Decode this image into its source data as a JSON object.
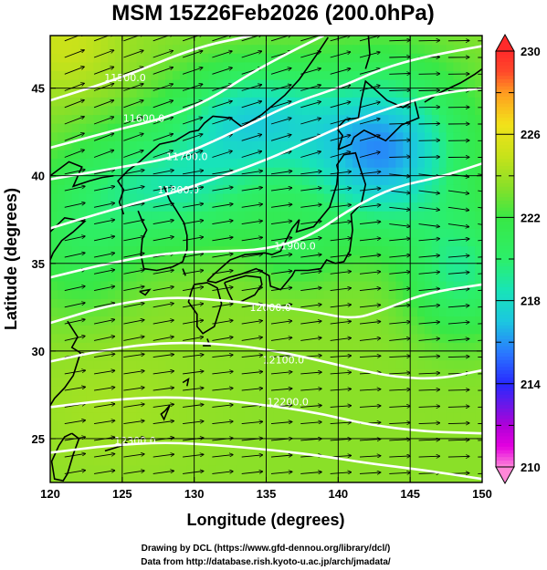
{
  "figure": {
    "title": "MSM 15Z26Feb2026 (200.0hPa)",
    "xlabel": "Longitude (degrees)",
    "ylabel": "Latitude  (degrees)",
    "footer_line1": "Drawing by DCL (https://www.gfd-dennou.org/library/dcl/)",
    "footer_line2": "Data from http://database.rish.kyoto-u.ac.jp/arch/jmadata/"
  },
  "map_data": {
    "type": "contour-shaded-vector-map",
    "variable_shading": "temperature",
    "xlim": [
      120,
      150
    ],
    "ylim": [
      22.5,
      48
    ],
    "x_ticks": [
      120,
      125,
      130,
      135,
      140,
      145,
      150
    ],
    "y_ticks": [
      25,
      30,
      35,
      40,
      45
    ],
    "colorbar": {
      "min": 210,
      "max": 230,
      "tick_values": [
        210,
        214,
        218,
        222,
        226,
        230
      ],
      "tick_labels": [
        "210",
        "214",
        "218",
        "222",
        "226",
        "230"
      ],
      "stops": [
        {
          "v": 210,
          "c": "#ff88d8"
        },
        {
          "v": 211,
          "c": "#e400e0"
        },
        {
          "v": 212,
          "c": "#b000d8"
        },
        {
          "v": 213,
          "c": "#6a18e8"
        },
        {
          "v": 214,
          "c": "#2828ff"
        },
        {
          "v": 215.5,
          "c": "#2a78ff"
        },
        {
          "v": 217,
          "c": "#1cc6e0"
        },
        {
          "v": 218.5,
          "c": "#18e4b8"
        },
        {
          "v": 220,
          "c": "#2cef6a"
        },
        {
          "v": 222,
          "c": "#38e846"
        },
        {
          "v": 223.5,
          "c": "#8ae028"
        },
        {
          "v": 225,
          "c": "#c8e21a"
        },
        {
          "v": 226.5,
          "c": "#f2e21a"
        },
        {
          "v": 228,
          "c": "#ff9d20"
        },
        {
          "v": 229,
          "c": "#ff4a2a"
        },
        {
          "v": 230,
          "c": "#ff2a2a"
        }
      ]
    },
    "contour_labels": [
      "11500.0",
      "11600.0",
      "11700.0",
      "11800.0",
      "11900.0",
      "12000.0",
      "12100.0",
      "12200.0",
      "12300.0"
    ],
    "contours": [
      {
        "value": 11500,
        "label": "11500.0",
        "points": [
          [
            120,
            44.3
          ],
          [
            125,
            45.6
          ],
          [
            130,
            47.3
          ],
          [
            134,
            48
          ]
        ],
        "label_at": [
          125.2,
          45.6
        ]
      },
      {
        "value": 11600,
        "label": "11600.0",
        "points": [
          [
            120,
            41.6
          ],
          [
            124.5,
            42.6
          ],
          [
            128,
            43.3
          ],
          [
            131,
            44.3
          ],
          [
            134,
            45.9
          ],
          [
            137,
            47.2
          ],
          [
            139,
            48
          ]
        ],
        "label_at": [
          126.5,
          43.3
        ]
      },
      {
        "value": 11700,
        "label": "11700.0",
        "points": [
          [
            120,
            39.8
          ],
          [
            125,
            40.5
          ],
          [
            129,
            41.1
          ],
          [
            133,
            42.6
          ],
          [
            137,
            44.2
          ],
          [
            140,
            45.0
          ],
          [
            143,
            46.1
          ],
          [
            146,
            46.8
          ],
          [
            150,
            47.4
          ]
        ],
        "label_at": [
          129.5,
          41.1
        ]
      },
      {
        "value": 11800,
        "label": "11800.0",
        "points": [
          [
            120,
            37.0
          ],
          [
            124,
            38.0
          ],
          [
            128,
            38.9
          ],
          [
            131,
            39.7
          ],
          [
            135,
            40.9
          ],
          [
            138,
            42.0
          ],
          [
            141,
            43.1
          ],
          [
            144,
            44.0
          ],
          [
            147,
            44.7
          ],
          [
            150,
            45.0
          ]
        ],
        "label_at": [
          128.9,
          39.2
        ]
      },
      {
        "value": 11900,
        "label": "11900.0",
        "points": [
          [
            120,
            34.2
          ],
          [
            124,
            35.0
          ],
          [
            128,
            35.6
          ],
          [
            132,
            35.7
          ],
          [
            135,
            35.8
          ],
          [
            138,
            36.5
          ],
          [
            141,
            38.2
          ],
          [
            144,
            39.4
          ],
          [
            147,
            39.9
          ],
          [
            150,
            40.7
          ]
        ],
        "label_at": [
          137.0,
          36.0
        ]
      },
      {
        "value": 12000,
        "label": "12000.0",
        "points": [
          [
            120,
            31.6
          ],
          [
            124,
            32.6
          ],
          [
            128,
            33.1
          ],
          [
            132,
            32.9
          ],
          [
            135,
            32.6
          ],
          [
            138,
            32.3
          ],
          [
            141,
            31.8
          ],
          [
            143,
            32.3
          ],
          [
            146,
            33.3
          ],
          [
            150,
            33.8
          ]
        ],
        "label_at": [
          135.3,
          32.5
        ]
      },
      {
        "value": 12100,
        "label": "12100.0",
        "points": [
          [
            120,
            29.4
          ],
          [
            124,
            30.1
          ],
          [
            128,
            30.5
          ],
          [
            132,
            30.4
          ],
          [
            135,
            30.1
          ],
          [
            138,
            29.6
          ],
          [
            141,
            29.0
          ],
          [
            144,
            28.5
          ],
          [
            147,
            28.4
          ],
          [
            150,
            28.9
          ]
        ],
        "label_at": [
          136.2,
          29.5
        ]
      },
      {
        "value": 12200,
        "label": "12200.0",
        "points": [
          [
            120,
            26.8
          ],
          [
            124,
            27.2
          ],
          [
            128,
            27.4
          ],
          [
            132,
            27.2
          ],
          [
            136,
            26.8
          ],
          [
            139,
            26.4
          ],
          [
            142,
            25.8
          ],
          [
            146,
            25.4
          ],
          [
            150,
            25.3
          ]
        ],
        "label_at": [
          136.5,
          27.1
        ]
      },
      {
        "value": 12300,
        "label": "12300.0",
        "points": [
          [
            120,
            24.2
          ],
          [
            124,
            24.6
          ],
          [
            128,
            24.8
          ],
          [
            132,
            24.6
          ],
          [
            136,
            24.3
          ],
          [
            139,
            24.0
          ],
          [
            142,
            23.6
          ],
          [
            146,
            23.2
          ],
          [
            150,
            22.7
          ]
        ],
        "label_at": [
          125.9,
          24.9
        ]
      }
    ],
    "coastlines": {
      "korea": [
        [
          126.1,
          38.0
        ],
        [
          126.4,
          37.4
        ],
        [
          126.7,
          36.9
        ],
        [
          126.4,
          36.4
        ],
        [
          126.3,
          35.5
        ],
        [
          126.5,
          34.7
        ],
        [
          127.4,
          34.6
        ],
        [
          128.5,
          34.8
        ],
        [
          129.2,
          35.1
        ],
        [
          129.5,
          35.8
        ],
        [
          129.5,
          36.6
        ],
        [
          129.3,
          37.3
        ],
        [
          128.7,
          38.1
        ],
        [
          128.3,
          38.6
        ],
        [
          127.9,
          39.4
        ]
      ],
      "n_korea_manchuria": [
        [
          125.1,
          37.8
        ],
        [
          124.8,
          38.5
        ],
        [
          125.1,
          39.2
        ],
        [
          124.7,
          39.7
        ],
        [
          125.4,
          40.3
        ],
        [
          126.2,
          40.8
        ],
        [
          127.6,
          41.8
        ],
        [
          128.7,
          42.0
        ],
        [
          129.7,
          42.5
        ],
        [
          130.3,
          42.6
        ],
        [
          130.7,
          43.0
        ],
        [
          131.3,
          43.4
        ],
        [
          132.5,
          43.3
        ],
        [
          133.3,
          42.8
        ],
        [
          134.7,
          43.5
        ],
        [
          136.3,
          44.6
        ],
        [
          137.3,
          45.5
        ],
        [
          138.5,
          46.9
        ],
        [
          139.3,
          47.9
        ]
      ],
      "china_coast": [
        [
          120,
          36.8
        ],
        [
          121.0,
          37.6
        ],
        [
          122.4,
          37.4
        ],
        [
          121.6,
          36.8
        ],
        [
          120.8,
          36.3
        ],
        [
          120.2,
          35.6
        ],
        [
          120,
          35.2
        ]
      ],
      "china_coast2": [
        [
          121.2,
          31.7
        ],
        [
          121.9,
          30.8
        ],
        [
          121.5,
          30.2
        ],
        [
          122.1,
          29.9
        ],
        [
          121.6,
          28.6
        ],
        [
          121.0,
          27.9
        ],
        [
          120.3,
          27.3
        ],
        [
          120,
          26.9
        ]
      ],
      "china_liaodong": [
        [
          120,
          40.0
        ],
        [
          121.3,
          40.8
        ],
        [
          122.2,
          40.5
        ],
        [
          121.6,
          39.4
        ],
        [
          122.7,
          39.7
        ],
        [
          123.6,
          39.9
        ],
        [
          124.4,
          40.0
        ]
      ],
      "taiwan": [
        [
          121.5,
          25.3
        ],
        [
          122.0,
          25.0
        ],
        [
          121.6,
          24.1
        ],
        [
          121.2,
          23.0
        ],
        [
          120.9,
          22.6
        ],
        [
          120.3,
          22.7
        ],
        [
          120.1,
          23.7
        ],
        [
          120.6,
          24.6
        ],
        [
          121.0,
          25.1
        ],
        [
          121.5,
          25.3
        ]
      ],
      "kyushu": [
        [
          130.0,
          33.8
        ],
        [
          130.9,
          33.9
        ],
        [
          131.6,
          33.6
        ],
        [
          131.9,
          32.7
        ],
        [
          131.4,
          31.4
        ],
        [
          130.6,
          31.0
        ],
        [
          130.2,
          31.4
        ],
        [
          130.2,
          32.1
        ],
        [
          129.6,
          32.8
        ],
        [
          129.8,
          33.4
        ],
        [
          130.0,
          33.8
        ]
      ],
      "shikoku": [
        [
          132.1,
          33.9
        ],
        [
          132.8,
          34.1
        ],
        [
          133.6,
          34.3
        ],
        [
          134.6,
          34.2
        ],
        [
          134.7,
          33.8
        ],
        [
          134.2,
          33.2
        ],
        [
          133.2,
          32.8
        ],
        [
          132.7,
          32.8
        ],
        [
          132.4,
          33.3
        ],
        [
          132.1,
          33.9
        ]
      ],
      "honshu": [
        [
          130.9,
          34.0
        ],
        [
          131.4,
          34.4
        ],
        [
          132.5,
          35.2
        ],
        [
          133.5,
          35.5
        ],
        [
          134.9,
          35.6
        ],
        [
          135.4,
          35.5
        ],
        [
          136.0,
          35.7
        ],
        [
          136.8,
          37.0
        ],
        [
          137.3,
          37.5
        ],
        [
          137.1,
          36.8
        ],
        [
          138.3,
          37.1
        ],
        [
          139.4,
          38.2
        ],
        [
          139.9,
          39.5
        ],
        [
          140.0,
          40.3
        ],
        [
          139.9,
          40.6
        ],
        [
          140.4,
          41.2
        ],
        [
          141.2,
          41.3
        ],
        [
          141.5,
          40.5
        ],
        [
          141.9,
          39.5
        ],
        [
          141.6,
          38.4
        ],
        [
          140.9,
          37.8
        ],
        [
          141.0,
          36.9
        ],
        [
          140.8,
          35.7
        ],
        [
          140.4,
          35.1
        ],
        [
          139.8,
          35.0
        ],
        [
          139.2,
          35.2
        ],
        [
          138.8,
          34.7
        ],
        [
          137.9,
          34.6
        ],
        [
          137.0,
          34.6
        ],
        [
          136.8,
          34.3
        ],
        [
          136.0,
          33.5
        ],
        [
          135.3,
          33.7
        ],
        [
          135.2,
          34.3
        ],
        [
          134.3,
          34.7
        ],
        [
          133.3,
          34.4
        ],
        [
          132.4,
          34.2
        ],
        [
          131.5,
          33.9
        ],
        [
          130.9,
          34.0
        ]
      ],
      "hokkaido": [
        [
          140.0,
          41.5
        ],
        [
          140.3,
          42.3
        ],
        [
          139.9,
          42.7
        ],
        [
          140.5,
          43.2
        ],
        [
          141.4,
          43.3
        ],
        [
          141.6,
          44.3
        ],
        [
          141.9,
          45.4
        ],
        [
          142.6,
          44.9
        ],
        [
          143.4,
          44.3
        ],
        [
          144.5,
          43.9
        ],
        [
          145.3,
          44.3
        ],
        [
          145.6,
          43.3
        ],
        [
          144.4,
          42.9
        ],
        [
          143.3,
          42.0
        ],
        [
          141.8,
          42.6
        ],
        [
          141.1,
          42.2
        ],
        [
          140.9,
          41.8
        ],
        [
          140.0,
          41.5
        ]
      ],
      "sakhalin": [
        [
          141.9,
          46.1
        ],
        [
          142.2,
          46.9
        ],
        [
          142.1,
          48.0
        ]
      ],
      "kurils": [
        [
          146.0,
          44.2
        ],
        [
          147.2,
          44.8
        ],
        [
          148.5,
          45.3
        ],
        [
          149.5,
          45.8
        ],
        [
          150,
          46.1
        ]
      ],
      "ryukyu": [
        [
          128.0,
          26.6
        ],
        [
          128.3,
          26.9
        ],
        [
          127.9,
          26.1
        ],
        [
          127.7,
          26.4
        ],
        [
          128.0,
          26.6
        ]
      ],
      "amami": [
        [
          129.2,
          28.2
        ],
        [
          129.6,
          28.4
        ],
        [
          129.5,
          28.0
        ]
      ],
      "tanegashima": [
        [
          130.9,
          30.7
        ],
        [
          131.1,
          30.3
        ],
        [
          130.6,
          30.3
        ]
      ],
      "miyako": [
        [
          125.2,
          24.8
        ],
        [
          125.4,
          24.7
        ],
        [
          124.2,
          24.4
        ],
        [
          123.8,
          24.3
        ]
      ],
      "tsushima": [
        [
          129.2,
          34.7
        ],
        [
          129.4,
          34.3
        ]
      ],
      "jeju": [
        [
          126.2,
          33.4
        ],
        [
          126.9,
          33.5
        ],
        [
          126.6,
          33.2
        ],
        [
          126.2,
          33.4
        ]
      ]
    }
  }
}
